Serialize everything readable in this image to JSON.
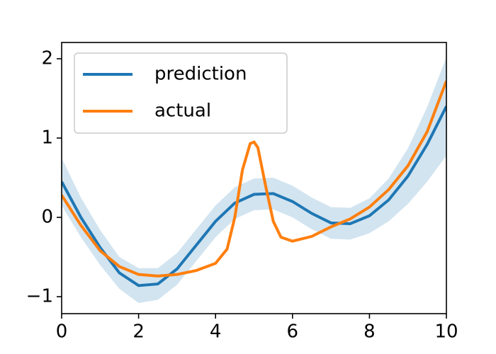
{
  "chart_data": {
    "type": "line",
    "xlim": [
      0,
      10
    ],
    "xticks": [
      0,
      2,
      4,
      6,
      8,
      10
    ],
    "ylim": [
      -1.214,
      2.205
    ],
    "yticks": [
      {
        "value": -1,
        "label": "−1"
      },
      0,
      1,
      2
    ],
    "legend": "upper left",
    "series": [
      {
        "name": "prediction",
        "color": "#1f77b4",
        "x": [
          0,
          0.5,
          1,
          1.5,
          2,
          2.5,
          3,
          3.5,
          4,
          4.5,
          5,
          5.5,
          6,
          6.5,
          7,
          7.5,
          8,
          8.5,
          9,
          9.5,
          10
        ],
        "values": [
          0.45,
          0.0,
          -0.38,
          -0.7,
          -0.86,
          -0.84,
          -0.65,
          -0.35,
          -0.05,
          0.18,
          0.29,
          0.3,
          0.2,
          0.05,
          -0.07,
          -0.08,
          0.02,
          0.22,
          0.52,
          0.92,
          1.4
        ],
        "band_color": "#1f77b4",
        "upper": [
          0.75,
          0.25,
          -0.16,
          -0.5,
          -0.64,
          -0.64,
          -0.45,
          -0.15,
          0.15,
          0.38,
          0.49,
          0.5,
          0.4,
          0.25,
          0.13,
          0.12,
          0.24,
          0.49,
          0.87,
          1.39,
          2.02
        ],
        "lower": [
          0.15,
          -0.25,
          -0.6,
          -0.9,
          -1.08,
          -1.04,
          -0.85,
          -0.55,
          -0.25,
          -0.02,
          0.09,
          0.1,
          0.0,
          -0.15,
          -0.27,
          -0.28,
          -0.2,
          -0.05,
          0.17,
          0.45,
          0.78
        ]
      },
      {
        "name": "actual",
        "color": "#ff7f0e",
        "x": [
          0,
          0.5,
          1,
          1.5,
          2,
          2.5,
          3,
          3.5,
          4,
          4.3,
          4.5,
          4.7,
          4.9,
          5,
          5.1,
          5.3,
          5.5,
          5.7,
          6,
          6.5,
          7,
          7.5,
          8,
          8.5,
          9,
          9.5,
          10
        ],
        "values": [
          0.28,
          -0.1,
          -0.42,
          -0.62,
          -0.72,
          -0.74,
          -0.72,
          -0.67,
          -0.58,
          -0.4,
          0.0,
          0.6,
          0.93,
          0.95,
          0.88,
          0.4,
          -0.05,
          -0.25,
          -0.3,
          -0.24,
          -0.12,
          -0.02,
          0.13,
          0.35,
          0.65,
          1.08,
          1.72
        ]
      }
    ]
  }
}
